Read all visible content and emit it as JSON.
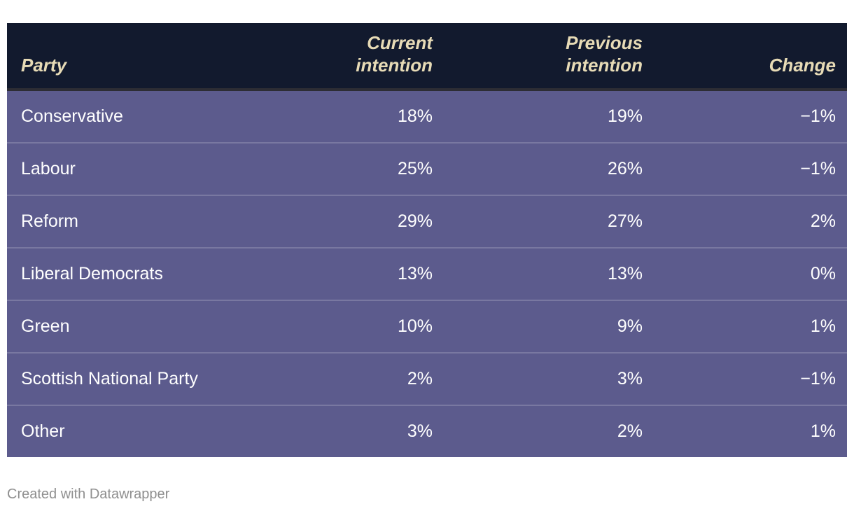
{
  "chart_data": {
    "type": "table",
    "title": "",
    "columns": [
      "Party",
      "Current intention",
      "Previous intention",
      "Change"
    ],
    "rows": [
      [
        "Conservative",
        "18%",
        "19%",
        "−1%"
      ],
      [
        "Labour",
        "25%",
        "26%",
        "−1%"
      ],
      [
        "Reform",
        "29%",
        "27%",
        "2%"
      ],
      [
        "Liberal Democrats",
        "13%",
        "13%",
        "0%"
      ],
      [
        "Green",
        "10%",
        "9%",
        "1%"
      ],
      [
        "Scottish National Party",
        "2%",
        "3%",
        "−1%"
      ],
      [
        "Other",
        "3%",
        "2%",
        "1%"
      ]
    ],
    "layout_hints": {
      "first_column_align": "left",
      "numeric_columns_align": "right",
      "header_style": "bold-italic"
    }
  },
  "table": {
    "columns": [
      {
        "label": "Party"
      },
      {
        "label": "Current intention"
      },
      {
        "label": "Previous intention"
      },
      {
        "label": "Change"
      }
    ],
    "rows": [
      {
        "party": "Conservative",
        "current": "18%",
        "previous": "19%",
        "change": "−1%"
      },
      {
        "party": "Labour",
        "current": "25%",
        "previous": "26%",
        "change": "−1%"
      },
      {
        "party": "Reform",
        "current": "29%",
        "previous": "27%",
        "change": "2%"
      },
      {
        "party": "Liberal Democrats",
        "current": "13%",
        "previous": "13%",
        "change": "0%"
      },
      {
        "party": "Green",
        "current": "10%",
        "previous": "9%",
        "change": "1%"
      },
      {
        "party": "Scottish National Party",
        "current": "2%",
        "previous": "3%",
        "change": "−1%"
      },
      {
        "party": "Other",
        "current": "3%",
        "previous": "2%",
        "change": "1%"
      }
    ]
  },
  "footer": {
    "credit": "Created with Datawrapper"
  },
  "colors": {
    "header_bg": "#121a2e",
    "header_text": "#e7dbb6",
    "header_border": "#2d2d34",
    "row_bg": "#5c5b8d",
    "row_text": "#ffffff",
    "row_divider": "rgba(255,255,255,0.18)",
    "credit_text": "#8f8f8f",
    "page_bg": "#ffffff"
  }
}
